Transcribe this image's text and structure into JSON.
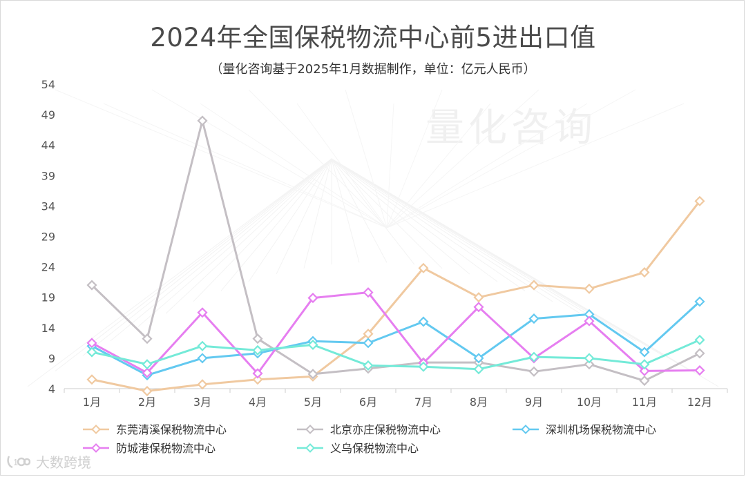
{
  "title": "2024年全国保税物流中心前5进出口值",
  "subtitle": "（量化咨询基于2025年1月数据制作，单位：亿元人民币）",
  "watermark": "量化咨询",
  "brand": "大数跨境",
  "chart_data": {
    "type": "line",
    "categories": [
      "1月",
      "2月",
      "3月",
      "4月",
      "5月",
      "6月",
      "7月",
      "8月",
      "9月",
      "10月",
      "11月",
      "12月"
    ],
    "y_ticks": [
      4,
      9,
      14,
      19,
      24,
      29,
      34,
      39,
      44,
      49,
      54
    ],
    "ylim": [
      4,
      54
    ],
    "grid": false,
    "legend_position": "bottom",
    "series": [
      {
        "name": "东莞清溪保税物流中心",
        "color": "#f0c9a0",
        "values": [
          5.5,
          3.6,
          4.7,
          5.5,
          6.0,
          13.0,
          23.8,
          19.0,
          21.0,
          20.4,
          23.1,
          34.8
        ]
      },
      {
        "name": "北京亦庄保税物流中心",
        "color": "#c4bfc4",
        "values": [
          21.0,
          12.2,
          48.0,
          12.2,
          6.4,
          7.3,
          8.3,
          8.3,
          6.8,
          8.0,
          5.3,
          9.8
        ]
      },
      {
        "name": "深圳机场保税物流中心",
        "color": "#63c9f0",
        "values": [
          11.0,
          6.2,
          9.0,
          9.8,
          11.8,
          11.5,
          15.0,
          9.0,
          15.5,
          16.2,
          10.0,
          18.3
        ]
      },
      {
        "name": "防城港保税物流中心",
        "color": "#e67ef0",
        "values": [
          11.5,
          6.6,
          16.5,
          6.5,
          18.9,
          19.8,
          8.2,
          17.4,
          9.0,
          15.1,
          6.9,
          7.0
        ]
      },
      {
        "name": "义乌保税物流中心",
        "color": "#74ead8",
        "values": [
          10.0,
          8.0,
          11.0,
          10.3,
          11.2,
          7.8,
          7.6,
          7.2,
          9.2,
          9.0,
          8.0,
          12.0
        ]
      }
    ]
  }
}
